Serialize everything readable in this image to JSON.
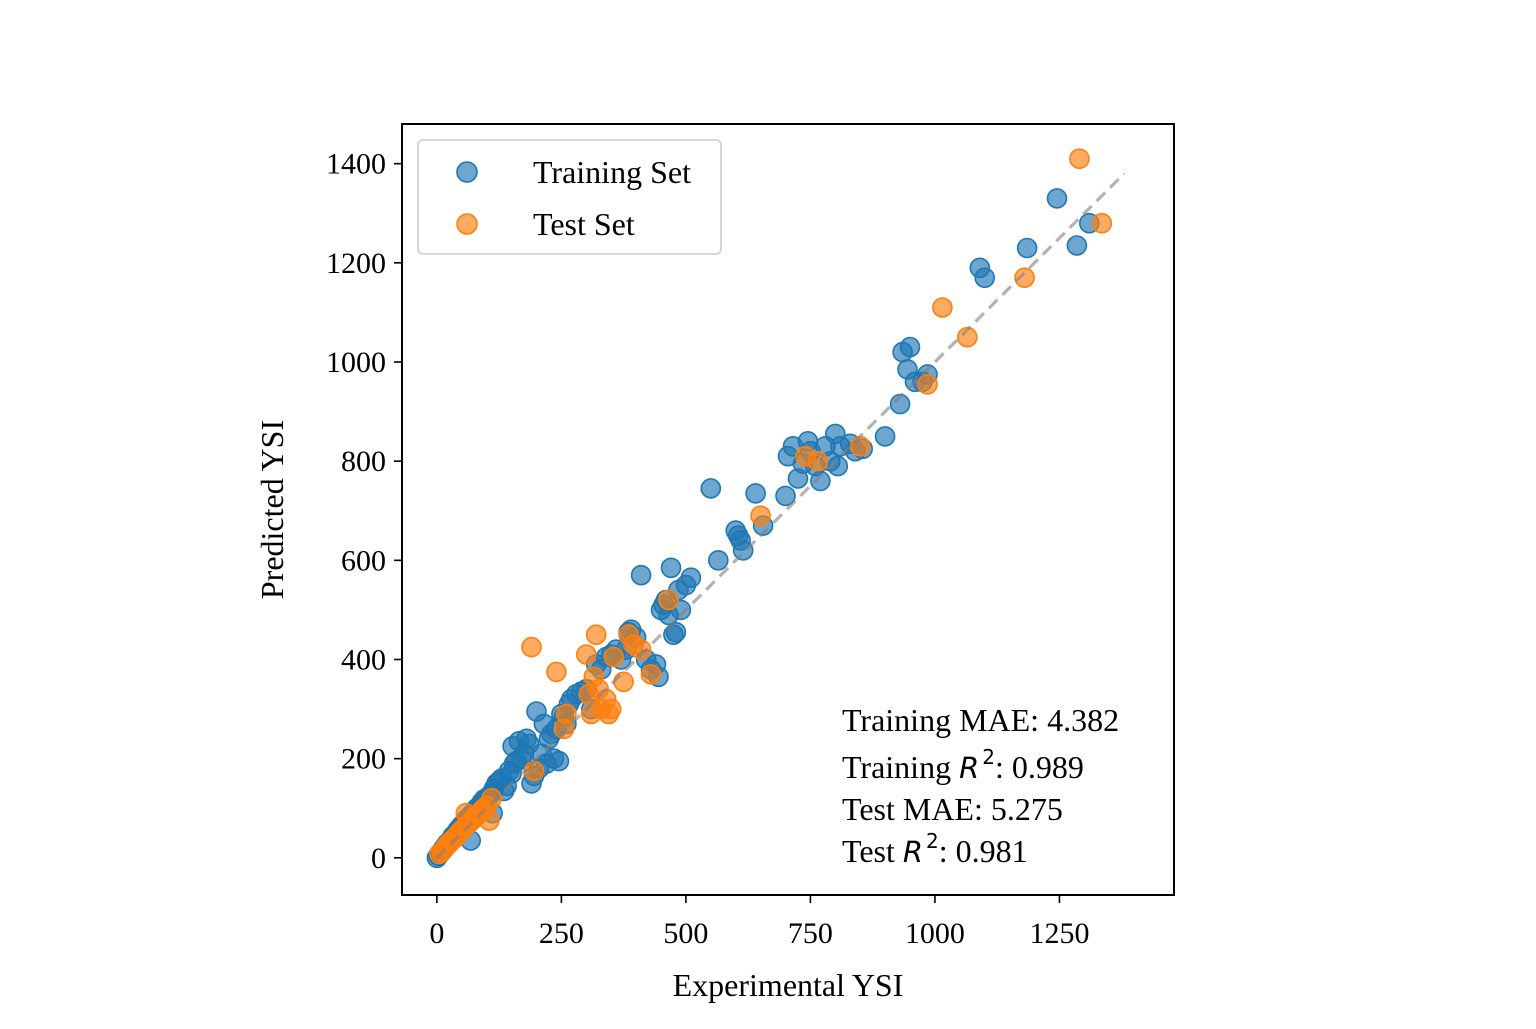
{
  "chart_data": {
    "type": "scatter",
    "xlabel": "Experimental YSI",
    "ylabel": "Predicted YSI",
    "xlim": [
      -70,
      1480
    ],
    "ylim": [
      -75,
      1480
    ],
    "xticks": [
      0,
      250,
      500,
      750,
      1000,
      1250
    ],
    "yticks": [
      0,
      200,
      400,
      600,
      800,
      1000,
      1200,
      1400
    ],
    "grid": false,
    "legend_position": "top-left",
    "reference_line": {
      "style": "dashed",
      "color": "#808080",
      "from": [
        0,
        0
      ],
      "to": [
        1380,
        1380
      ]
    },
    "annotations": [
      {
        "label": "Training MAE: ",
        "value": "4.382"
      },
      {
        "label": "Training ",
        "r2": true,
        "value": ": 0.989"
      },
      {
        "label": "Test MAE: ",
        "value": "5.275"
      },
      {
        "label": "Test ",
        "r2": true,
        "value": ": 0.981"
      }
    ],
    "series": [
      {
        "name": "Training Set",
        "color": "#1f77b4",
        "points": [
          [
            0,
            0
          ],
          [
            3,
            4
          ],
          [
            5,
            8
          ],
          [
            8,
            10
          ],
          [
            10,
            14
          ],
          [
            12,
            16
          ],
          [
            14,
            20
          ],
          [
            16,
            22
          ],
          [
            18,
            25
          ],
          [
            20,
            28
          ],
          [
            22,
            30
          ],
          [
            25,
            32
          ],
          [
            28,
            36
          ],
          [
            30,
            40
          ],
          [
            32,
            44
          ],
          [
            35,
            46
          ],
          [
            38,
            50
          ],
          [
            40,
            52
          ],
          [
            42,
            56
          ],
          [
            45,
            60
          ],
          [
            48,
            62
          ],
          [
            50,
            66
          ],
          [
            55,
            70
          ],
          [
            58,
            72
          ],
          [
            60,
            78
          ],
          [
            65,
            82
          ],
          [
            68,
            35
          ],
          [
            70,
            88
          ],
          [
            75,
            92
          ],
          [
            80,
            100
          ],
          [
            85,
            104
          ],
          [
            88,
            108
          ],
          [
            90,
            112
          ],
          [
            95,
            118
          ],
          [
            100,
            120
          ],
          [
            105,
            125
          ],
          [
            110,
            130
          ],
          [
            112,
            90
          ],
          [
            115,
            140
          ],
          [
            120,
            150
          ],
          [
            125,
            155
          ],
          [
            130,
            160
          ],
          [
            135,
            135
          ],
          [
            140,
            145
          ],
          [
            145,
            175
          ],
          [
            150,
            170
          ],
          [
            152,
            225
          ],
          [
            155,
            190
          ],
          [
            160,
            195
          ],
          [
            165,
            235
          ],
          [
            170,
            200
          ],
          [
            175,
            210
          ],
          [
            180,
            240
          ],
          [
            185,
            230
          ],
          [
            190,
            150
          ],
          [
            195,
            165
          ],
          [
            200,
            295
          ],
          [
            205,
            180
          ],
          [
            210,
            210
          ],
          [
            215,
            270
          ],
          [
            220,
            190
          ],
          [
            225,
            240
          ],
          [
            230,
            250
          ],
          [
            235,
            200
          ],
          [
            240,
            260
          ],
          [
            245,
            195
          ],
          [
            250,
            290
          ],
          [
            255,
            285
          ],
          [
            260,
            270
          ],
          [
            265,
            310
          ],
          [
            270,
            320
          ],
          [
            280,
            330
          ],
          [
            290,
            335
          ],
          [
            300,
            340
          ],
          [
            310,
            300
          ],
          [
            320,
            390
          ],
          [
            330,
            380
          ],
          [
            340,
            405
          ],
          [
            350,
            410
          ],
          [
            360,
            420
          ],
          [
            370,
            400
          ],
          [
            380,
            420
          ],
          [
            385,
            455
          ],
          [
            390,
            460
          ],
          [
            400,
            445
          ],
          [
            410,
            570
          ],
          [
            420,
            400
          ],
          [
            430,
            380
          ],
          [
            440,
            390
          ],
          [
            445,
            365
          ],
          [
            450,
            500
          ],
          [
            455,
            510
          ],
          [
            460,
            520
          ],
          [
            465,
            490
          ],
          [
            470,
            585
          ],
          [
            475,
            450
          ],
          [
            480,
            455
          ],
          [
            485,
            540
          ],
          [
            490,
            500
          ],
          [
            500,
            550
          ],
          [
            510,
            565
          ],
          [
            550,
            745
          ],
          [
            565,
            600
          ],
          [
            600,
            660
          ],
          [
            605,
            650
          ],
          [
            610,
            640
          ],
          [
            615,
            620
          ],
          [
            640,
            735
          ],
          [
            655,
            670
          ],
          [
            700,
            730
          ],
          [
            705,
            810
          ],
          [
            715,
            830
          ],
          [
            725,
            765
          ],
          [
            735,
            795
          ],
          [
            745,
            840
          ],
          [
            750,
            820
          ],
          [
            760,
            790
          ],
          [
            770,
            760
          ],
          [
            780,
            830
          ],
          [
            790,
            800
          ],
          [
            800,
            855
          ],
          [
            805,
            790
          ],
          [
            810,
            830
          ],
          [
            830,
            835
          ],
          [
            840,
            820
          ],
          [
            855,
            825
          ],
          [
            900,
            850
          ],
          [
            930,
            915
          ],
          [
            935,
            1020
          ],
          [
            945,
            985
          ],
          [
            950,
            1030
          ],
          [
            960,
            960
          ],
          [
            975,
            960
          ],
          [
            985,
            975
          ],
          [
            1090,
            1190
          ],
          [
            1100,
            1170
          ],
          [
            1185,
            1230
          ],
          [
            1245,
            1330
          ],
          [
            1285,
            1235
          ],
          [
            1310,
            1280
          ]
        ]
      },
      {
        "name": "Test Set",
        "color": "#ff7f0e",
        "points": [
          [
            5,
            8
          ],
          [
            10,
            12
          ],
          [
            15,
            18
          ],
          [
            18,
            22
          ],
          [
            20,
            25
          ],
          [
            24,
            28
          ],
          [
            27,
            32
          ],
          [
            30,
            35
          ],
          [
            34,
            38
          ],
          [
            38,
            42
          ],
          [
            40,
            45
          ],
          [
            44,
            50
          ],
          [
            48,
            54
          ],
          [
            52,
            58
          ],
          [
            56,
            62
          ],
          [
            58,
            90
          ],
          [
            60,
            66
          ],
          [
            65,
            70
          ],
          [
            70,
            75
          ],
          [
            75,
            80
          ],
          [
            80,
            85
          ],
          [
            85,
            90
          ],
          [
            90,
            95
          ],
          [
            95,
            100
          ],
          [
            100,
            105
          ],
          [
            105,
            75
          ],
          [
            110,
            120
          ],
          [
            190,
            425
          ],
          [
            195,
            175
          ],
          [
            240,
            375
          ],
          [
            255,
            260
          ],
          [
            260,
            290
          ],
          [
            300,
            410
          ],
          [
            305,
            330
          ],
          [
            310,
            290
          ],
          [
            315,
            365
          ],
          [
            320,
            450
          ],
          [
            325,
            340
          ],
          [
            330,
            300
          ],
          [
            340,
            320
          ],
          [
            345,
            290
          ],
          [
            350,
            300
          ],
          [
            355,
            405
          ],
          [
            375,
            355
          ],
          [
            385,
            450
          ],
          [
            395,
            430
          ],
          [
            410,
            420
          ],
          [
            430,
            370
          ],
          [
            465,
            520
          ],
          [
            650,
            690
          ],
          [
            740,
            810
          ],
          [
            765,
            800
          ],
          [
            850,
            830
          ],
          [
            985,
            955
          ],
          [
            1015,
            1110
          ],
          [
            1065,
            1050
          ],
          [
            1180,
            1170
          ],
          [
            1290,
            1410
          ],
          [
            1335,
            1280
          ]
        ]
      }
    ]
  }
}
